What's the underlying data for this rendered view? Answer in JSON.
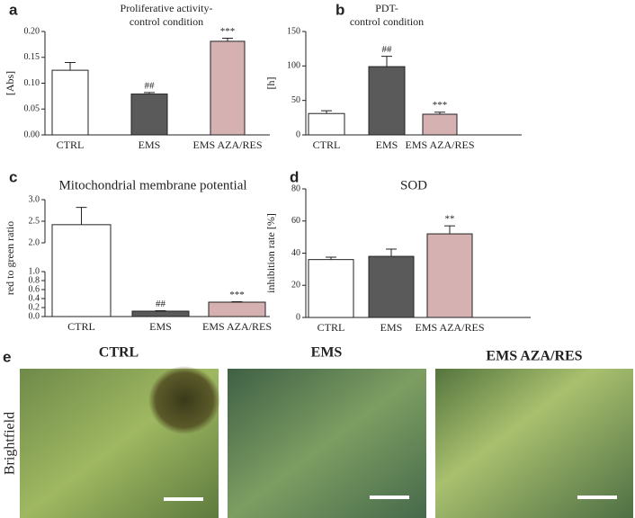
{
  "chart_data": [
    {
      "type": "bar",
      "panel": "a",
      "title": [
        "Proliferative activity-",
        "control condition"
      ],
      "y_label": "[Abs]",
      "categories": [
        "CTRL",
        "EMS",
        "EMS AZA/RES"
      ],
      "values": [
        0.125,
        0.079,
        0.181
      ],
      "errors": [
        0.015,
        0.003,
        0.006
      ],
      "annotations": [
        null,
        "##",
        "***"
      ],
      "colors": [
        "#ffffff",
        "#5a5a5a",
        "#d6b1b1"
      ],
      "ylim": [
        0,
        0.2
      ],
      "yticks": [
        {
          "value": 0,
          "label": "0.00"
        },
        {
          "value": 0.05,
          "label": "0.05"
        },
        {
          "value": 0.1,
          "label": "0.10"
        },
        {
          "value": 0.15,
          "label": "0.15"
        },
        {
          "value": 0.2,
          "label": "0.20"
        }
      ]
    },
    {
      "type": "bar",
      "panel": "b",
      "title": [
        "PDT-",
        "control condition"
      ],
      "y_label": "[h]",
      "categories": [
        "CTRL",
        "EMS",
        "EMS AZA/RES"
      ],
      "values": [
        31,
        99,
        30
      ],
      "errors": [
        4,
        15,
        3
      ],
      "annotations": [
        null,
        "##",
        "***"
      ],
      "colors": [
        "#ffffff",
        "#5a5a5a",
        "#d6b1b1"
      ],
      "ylim": [
        0,
        150
      ],
      "yticks": [
        0,
        50,
        100,
        150
      ]
    },
    {
      "type": "bar",
      "panel": "c",
      "title": "Mitochondrial membrane potential",
      "y_label": "red to green ratio",
      "categories": [
        "CTRL",
        "EMS",
        "EMS AZA/RES"
      ],
      "values": [
        2.42,
        0.12,
        0.32
      ],
      "errors": [
        0.4,
        0.01,
        0.01
      ],
      "annotations": [
        null,
        "##",
        "***"
      ],
      "colors": [
        "#ffffff",
        "#5a5a5a",
        "#d6b1b1"
      ],
      "ylim": [
        0,
        3
      ],
      "y_break": [
        1,
        2
      ],
      "yticks": [
        {
          "value": 0,
          "label": "0.0"
        },
        0.2,
        0.4,
        0.6,
        0.8,
        {
          "value": 1,
          "label": "1.0"
        },
        {
          "value": 2,
          "label": "2.0"
        },
        2.5,
        {
          "value": 3,
          "label": "3.0"
        }
      ]
    },
    {
      "type": "bar",
      "panel": "d",
      "title": "SOD",
      "y_label": "inhibition rate [%]",
      "categories": [
        "CTRL",
        "EMS",
        "EMS AZA/RES"
      ],
      "values": [
        36,
        38,
        52
      ],
      "errors": [
        1.5,
        4.5,
        5
      ],
      "annotations": [
        null,
        null,
        "**"
      ],
      "colors": [
        "#ffffff",
        "#5a5a5a",
        "#d6b1b1"
      ],
      "ylim": [
        0,
        80
      ],
      "yticks": [
        0,
        20,
        40,
        60,
        80
      ]
    }
  ],
  "images": {
    "panel": "e",
    "row_label": "Brightfield",
    "titles": [
      "CTRL",
      "EMS",
      "EMS AZA/RES"
    ]
  }
}
